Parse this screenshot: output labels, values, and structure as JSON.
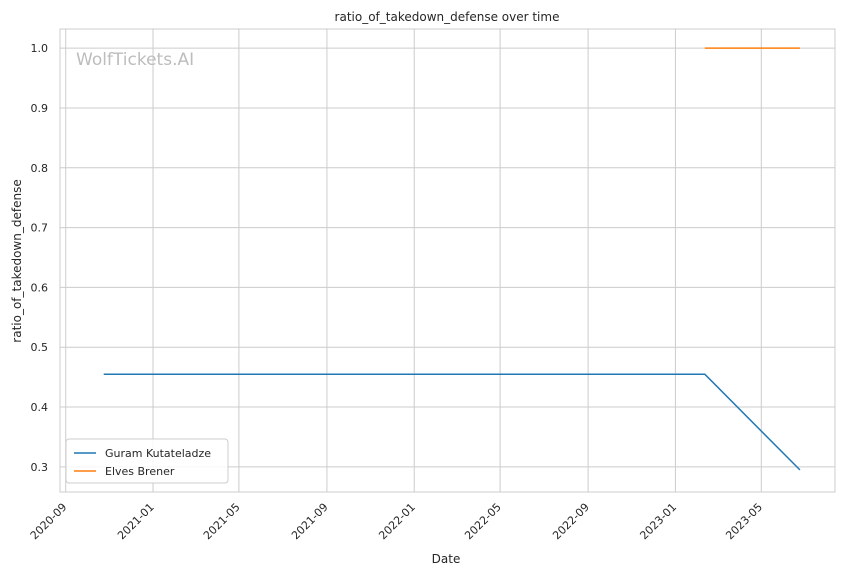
{
  "chart_data": {
    "type": "line",
    "title": "ratio_of_takedown_defense over time",
    "xlabel": "Date",
    "ylabel": "ratio_of_takedown_defense",
    "watermark": "WolfTickets.AI",
    "xlim": [
      "2020-08-24",
      "2023-08-12"
    ],
    "ylim": [
      0.258,
      1.032
    ],
    "x_ticks": [
      "2020-09",
      "2021-01",
      "2021-05",
      "2021-09",
      "2022-01",
      "2022-05",
      "2022-09",
      "2023-01",
      "2023-05"
    ],
    "y_ticks": [
      "0.3",
      "0.4",
      "0.5",
      "0.6",
      "0.7",
      "0.8",
      "0.9",
      "1.0"
    ],
    "grid": true,
    "legend_position": "lower-left",
    "series": [
      {
        "name": "Guram Kutateladze",
        "color": "#1f77b4",
        "points": [
          {
            "x": "2020-10-24",
            "y": 0.455
          },
          {
            "x": "2023-02-11",
            "y": 0.455
          },
          {
            "x": "2023-06-24",
            "y": 0.295
          }
        ]
      },
      {
        "name": "Elves Brener",
        "color": "#ff7f0e",
        "points": [
          {
            "x": "2023-02-11",
            "y": 1.0
          },
          {
            "x": "2023-06-24",
            "y": 1.0
          }
        ]
      }
    ]
  }
}
